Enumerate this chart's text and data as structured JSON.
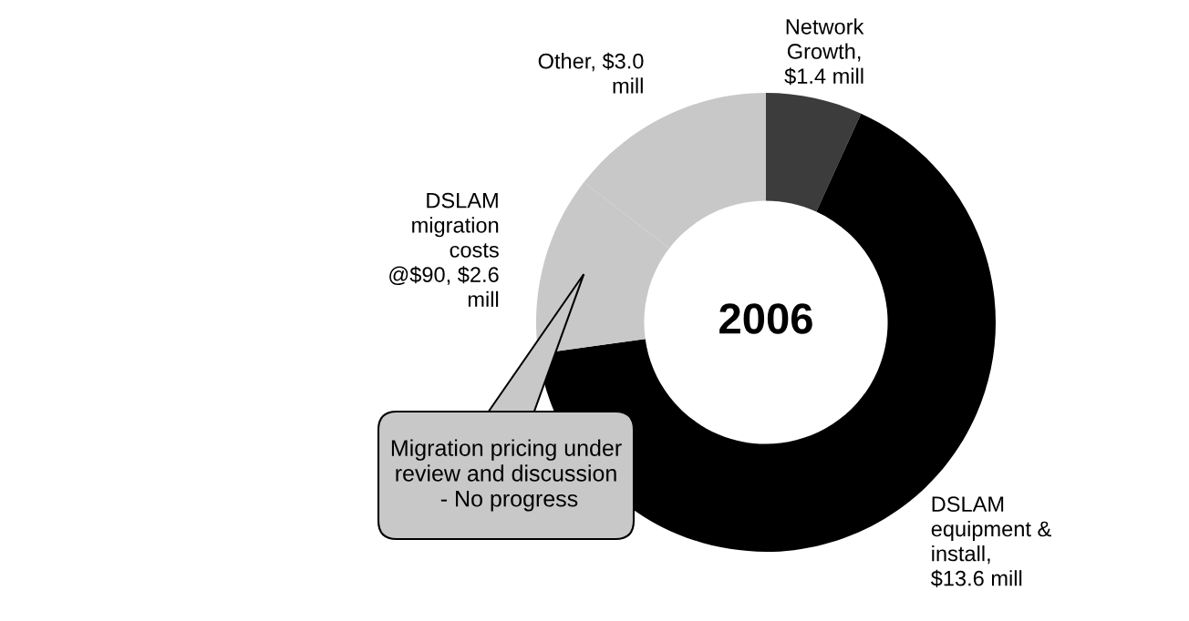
{
  "chart_data": {
    "type": "donut",
    "title": "2006",
    "categories": [
      "Network\nGrowth,\n$1.4 mill",
      "DSLAM\nequipment &\ninstall,\n$13.6 mill",
      "DSLAM\nmigration\ncosts\n@$90, $2.6\nmill",
      "Other, $3.0\nmill"
    ],
    "values": [
      1.4,
      13.6,
      2.6,
      3.0
    ],
    "colors": [
      "#3c3c3c",
      "#000000",
      "#c8c8c8",
      "#c8c8c8"
    ],
    "annotations": [
      "Migration pricing under\nreview and discussion\n - No progress"
    ],
    "legend": false
  }
}
